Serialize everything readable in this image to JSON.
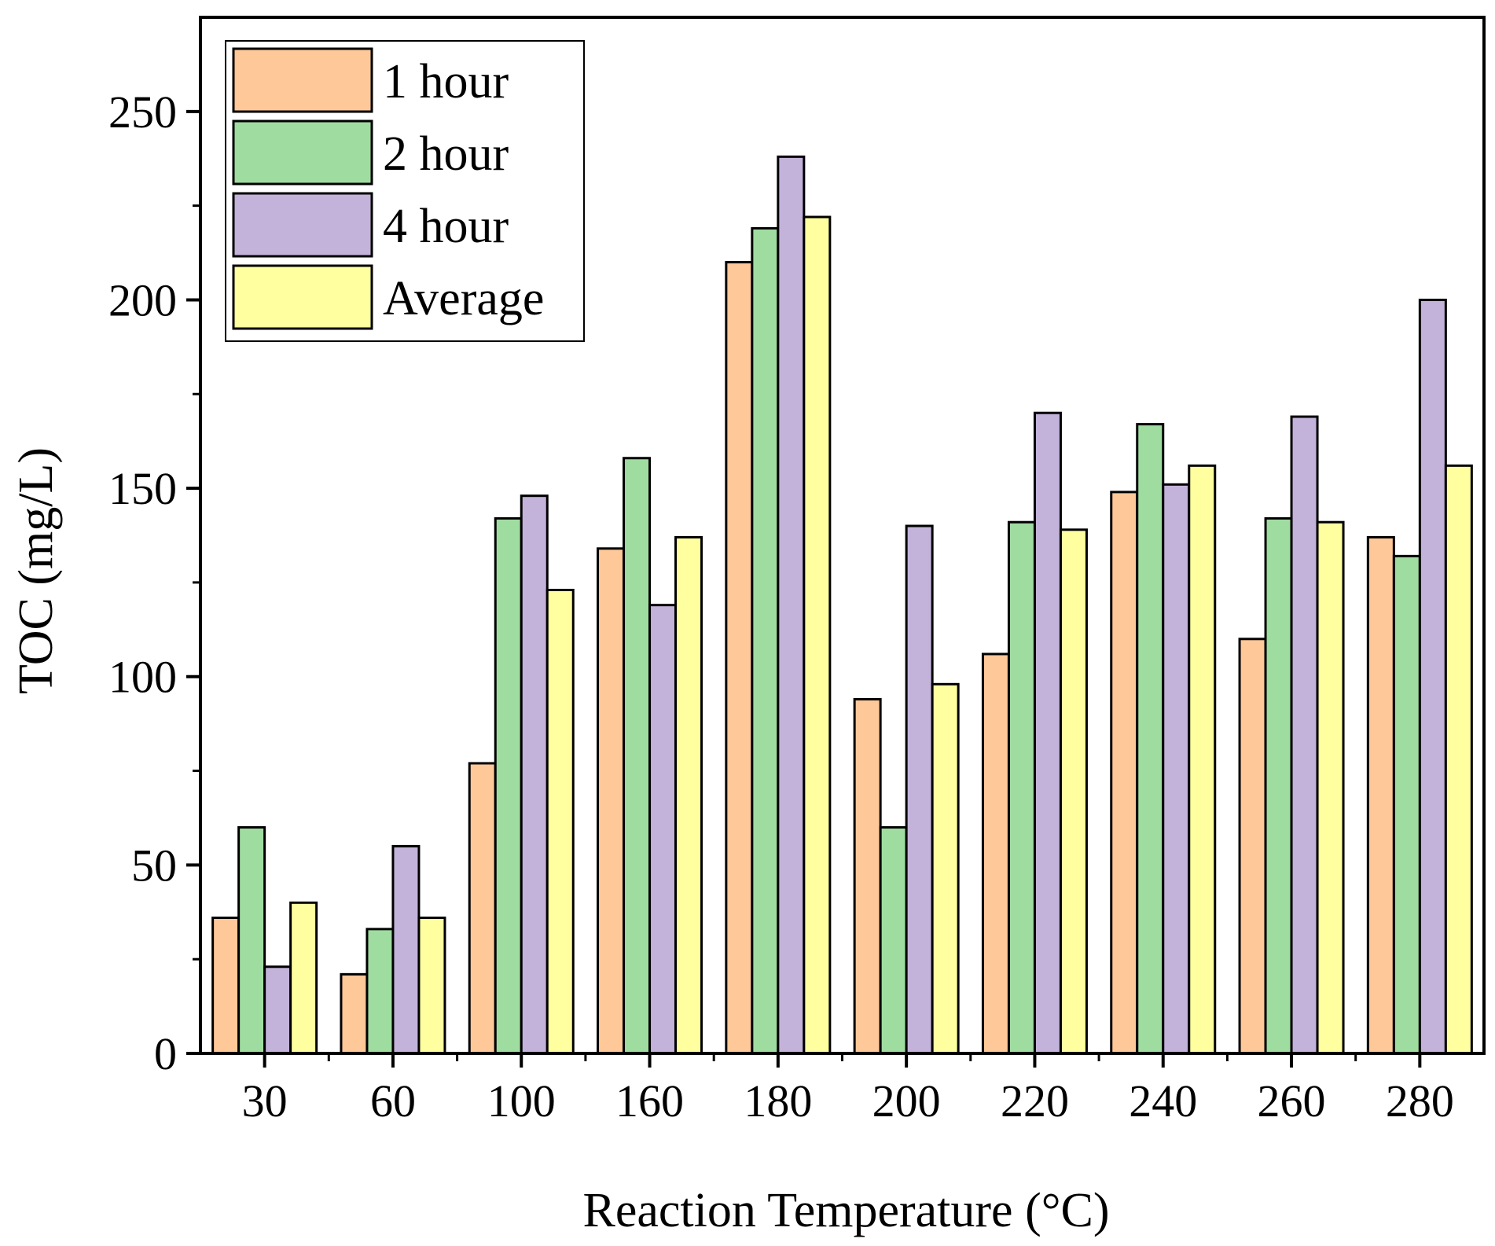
{
  "chart_data": {
    "type": "bar",
    "title": "",
    "xlabel": "Reaction Temperature (°C)",
    "ylabel": "TOC (mg/L)",
    "ylim": [
      0,
      275
    ],
    "yticks": [
      0,
      50,
      100,
      150,
      200,
      250
    ],
    "grid": false,
    "legend_position": "top-left",
    "categories": [
      "30",
      "60",
      "100",
      "160",
      "180",
      "200",
      "220",
      "240",
      "260",
      "280"
    ],
    "series": [
      {
        "name": "1 hour",
        "color": "#FFC898",
        "values": [
          36,
          21,
          77,
          134,
          210,
          94,
          106,
          149,
          110,
          137
        ]
      },
      {
        "name": "2 hour",
        "color": "#9FDCA0",
        "values": [
          60,
          33,
          142,
          158,
          219,
          60,
          141,
          167,
          142,
          132
        ]
      },
      {
        "name": "4 hour",
        "color": "#C3B2D9",
        "values": [
          23,
          55,
          148,
          119,
          238,
          140,
          170,
          151,
          169,
          200
        ]
      },
      {
        "name": "Average",
        "color": "#FFFFA0",
        "values": [
          40,
          36,
          123,
          137,
          222,
          98,
          139,
          156,
          141,
          156
        ]
      }
    ]
  }
}
